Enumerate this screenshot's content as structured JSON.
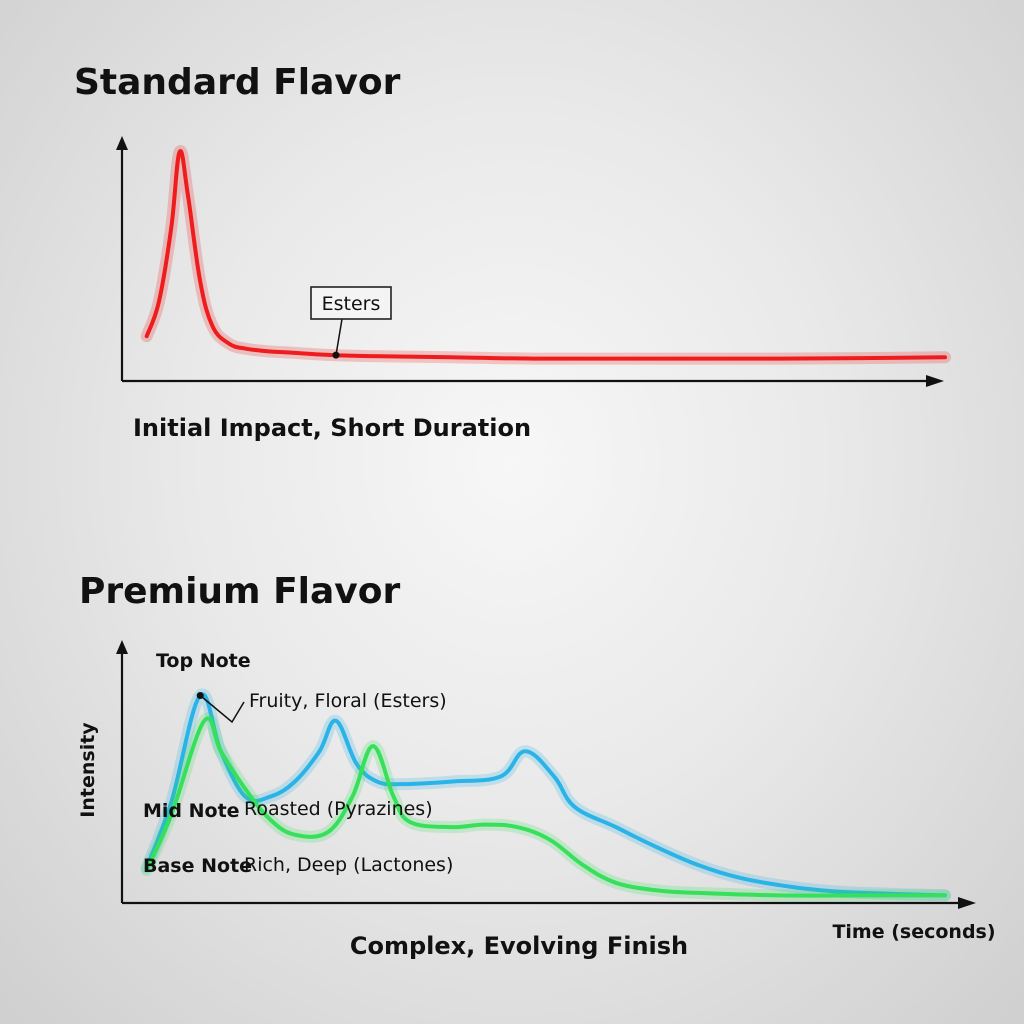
{
  "chart_data": [
    {
      "type": "line",
      "title": "Standard Flavor",
      "subtitle": "Initial Impact, Short Duration",
      "xlabel": "",
      "ylabel": "",
      "xlim": [
        0,
        10
      ],
      "ylim": [
        0,
        1
      ],
      "grid": false,
      "series": [
        {
          "name": "",
          "color": "#ee1c1c",
          "x": [
            0.3,
            0.45,
            0.6,
            0.7,
            0.8,
            0.95,
            1.1,
            1.3,
            1.5,
            1.75,
            2.0,
            2.5,
            3.0,
            4.0,
            5.0,
            6.0,
            7.0,
            8.0,
            9.0,
            10.0
          ],
          "y": [
            0.18,
            0.32,
            0.62,
            0.92,
            0.75,
            0.4,
            0.22,
            0.15,
            0.13,
            0.12,
            0.115,
            0.105,
            0.1,
            0.095,
            0.09,
            0.09,
            0.09,
            0.09,
            0.092,
            0.095
          ]
        }
      ],
      "annotations": [
        {
          "text": "Esters",
          "x": 2.6,
          "y": 0.1
        }
      ]
    },
    {
      "type": "line",
      "title": "Premium Flavor",
      "subtitle": "Complex, Evolving Finish",
      "xlabel": "Time (seconds)",
      "ylabel": "Intensity",
      "xlim": [
        0,
        10
      ],
      "ylim": [
        0,
        1
      ],
      "grid": false,
      "series": [
        {
          "name": "",
          "color": "#2ab3e6",
          "x": [
            0.3,
            0.6,
            0.95,
            1.2,
            1.5,
            1.8,
            2.1,
            2.4,
            2.6,
            2.85,
            3.1,
            3.4,
            4.0,
            4.6,
            4.9,
            5.25,
            5.5,
            6.0,
            6.5,
            7.0,
            7.5,
            8.0,
            8.5,
            9.0,
            10.0
          ],
          "y": [
            0.14,
            0.4,
            0.82,
            0.6,
            0.42,
            0.42,
            0.48,
            0.6,
            0.72,
            0.55,
            0.48,
            0.47,
            0.48,
            0.5,
            0.6,
            0.5,
            0.38,
            0.3,
            0.22,
            0.15,
            0.1,
            0.07,
            0.05,
            0.04,
            0.03
          ]
        },
        {
          "name": "",
          "color": "#36e05a",
          "x": [
            0.3,
            0.6,
            1.0,
            1.2,
            1.5,
            1.8,
            2.1,
            2.5,
            2.8,
            3.05,
            3.3,
            3.5,
            4.0,
            4.4,
            4.8,
            5.2,
            5.6,
            6.0,
            6.5,
            7.0,
            8.0,
            9.0,
            10.0
          ],
          "y": [
            0.13,
            0.35,
            0.72,
            0.6,
            0.45,
            0.33,
            0.27,
            0.28,
            0.42,
            0.62,
            0.42,
            0.32,
            0.3,
            0.31,
            0.3,
            0.25,
            0.15,
            0.08,
            0.05,
            0.04,
            0.03,
            0.03,
            0.03
          ]
        }
      ],
      "annotations": [
        {
          "text": "Top Note"
        },
        {
          "text": "Fruity, Floral (Esters)",
          "x": 0.95,
          "y": 0.62
        },
        {
          "text": "Mid Note"
        },
        {
          "text": "Roasted (Pyrazines)"
        },
        {
          "text": "Base Note"
        },
        {
          "text": "Rich, Deep (Lactones)"
        }
      ]
    }
  ]
}
